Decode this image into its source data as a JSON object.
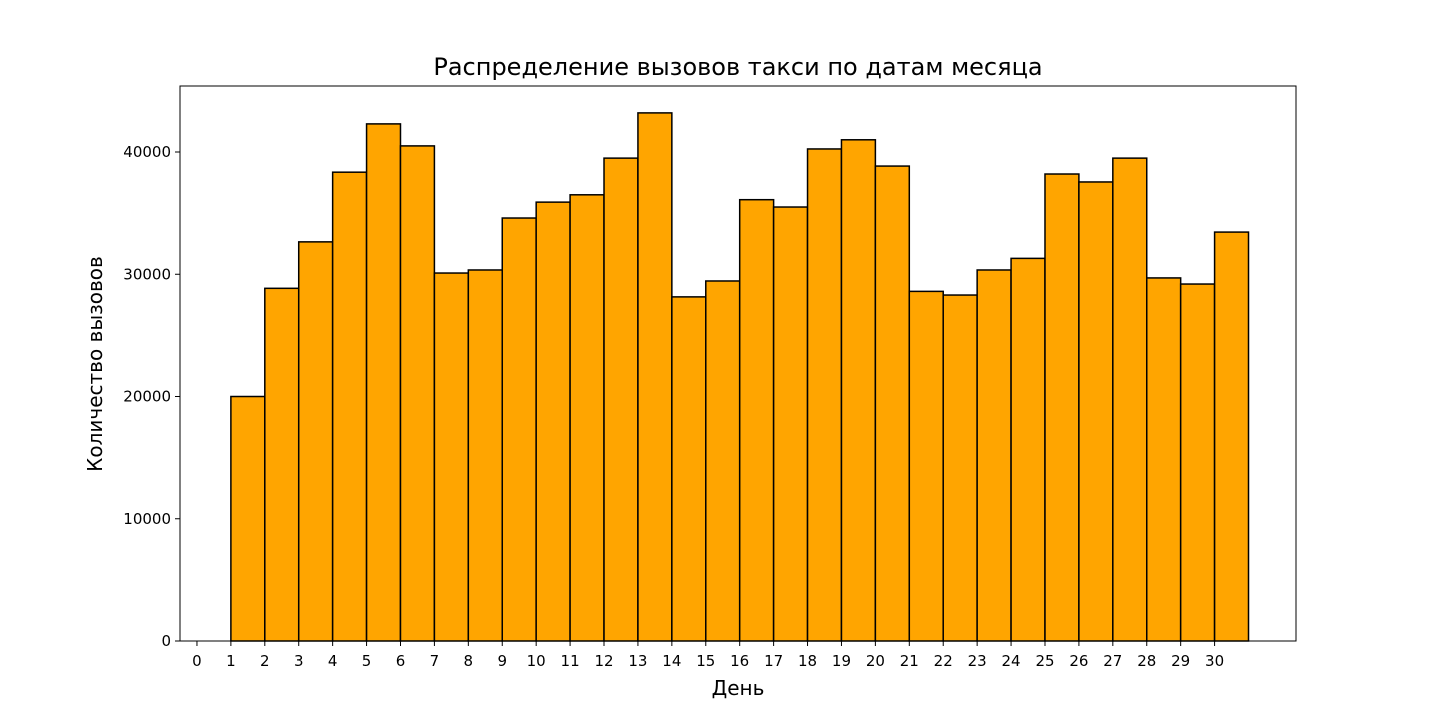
{
  "chart_data": {
    "type": "bar",
    "title": "Распределение вызовов такси по датам месяца",
    "xlabel": "День",
    "ylabel": "Количество вызовов",
    "bar_color": "#FFA500",
    "edge_color": "#000000",
    "bins": [
      {
        "start": 1,
        "end": 2,
        "value": 20000
      },
      {
        "start": 2,
        "end": 3,
        "value": 28850
      },
      {
        "start": 3,
        "end": 4,
        "value": 32650
      },
      {
        "start": 4,
        "end": 5,
        "value": 38350
      },
      {
        "start": 5,
        "end": 6,
        "value": 42300
      },
      {
        "start": 6,
        "end": 7,
        "value": 40500
      },
      {
        "start": 7,
        "end": 8,
        "value": 30100
      },
      {
        "start": 8,
        "end": 9,
        "value": 30350
      },
      {
        "start": 9,
        "end": 10,
        "value": 34600
      },
      {
        "start": 10,
        "end": 11,
        "value": 35900
      },
      {
        "start": 11,
        "end": 12,
        "value": 36500
      },
      {
        "start": 12,
        "end": 13,
        "value": 39500
      },
      {
        "start": 13,
        "end": 14,
        "value": 43200
      },
      {
        "start": 14,
        "end": 15,
        "value": 28150
      },
      {
        "start": 15,
        "end": 16,
        "value": 29450
      },
      {
        "start": 16,
        "end": 17,
        "value": 36100
      },
      {
        "start": 17,
        "end": 18,
        "value": 35500
      },
      {
        "start": 18,
        "end": 19,
        "value": 40250
      },
      {
        "start": 19,
        "end": 20,
        "value": 41000
      },
      {
        "start": 20,
        "end": 21,
        "value": 38850
      },
      {
        "start": 21,
        "end": 22,
        "value": 28600
      },
      {
        "start": 22,
        "end": 23,
        "value": 28300
      },
      {
        "start": 23,
        "end": 24,
        "value": 30350
      },
      {
        "start": 24,
        "end": 25,
        "value": 31300
      },
      {
        "start": 25,
        "end": 26,
        "value": 38200
      },
      {
        "start": 26,
        "end": 27,
        "value": 37550
      },
      {
        "start": 27,
        "end": 28,
        "value": 39500
      },
      {
        "start": 28,
        "end": 29,
        "value": 29700
      },
      {
        "start": 29,
        "end": 30,
        "value": 29200
      },
      {
        "start": 30,
        "end": 31,
        "value": 33450
      }
    ],
    "xlim": [
      -0.5,
      32.4
    ],
    "ylim": [
      0,
      45400
    ],
    "x_ticks": [
      0,
      1,
      2,
      3,
      4,
      5,
      6,
      7,
      8,
      9,
      10,
      11,
      12,
      13,
      14,
      15,
      16,
      17,
      18,
      19,
      20,
      21,
      22,
      23,
      24,
      25,
      26,
      27,
      28,
      29,
      30
    ],
    "x_tick_labels": [
      "0",
      "1",
      "2",
      "3",
      "4",
      "5",
      "6",
      "7",
      "8",
      "9",
      "10",
      "11",
      "12",
      "13",
      "14",
      "15",
      "16",
      "17",
      "18",
      "19",
      "20",
      "21",
      "22",
      "23",
      "24",
      "25",
      "26",
      "27",
      "28",
      "29",
      "30"
    ],
    "y_ticks": [
      0,
      10000,
      20000,
      30000,
      40000
    ],
    "y_tick_labels": [
      "0",
      "10000",
      "20000",
      "30000",
      "40000"
    ],
    "grid": false,
    "legend": "none"
  }
}
